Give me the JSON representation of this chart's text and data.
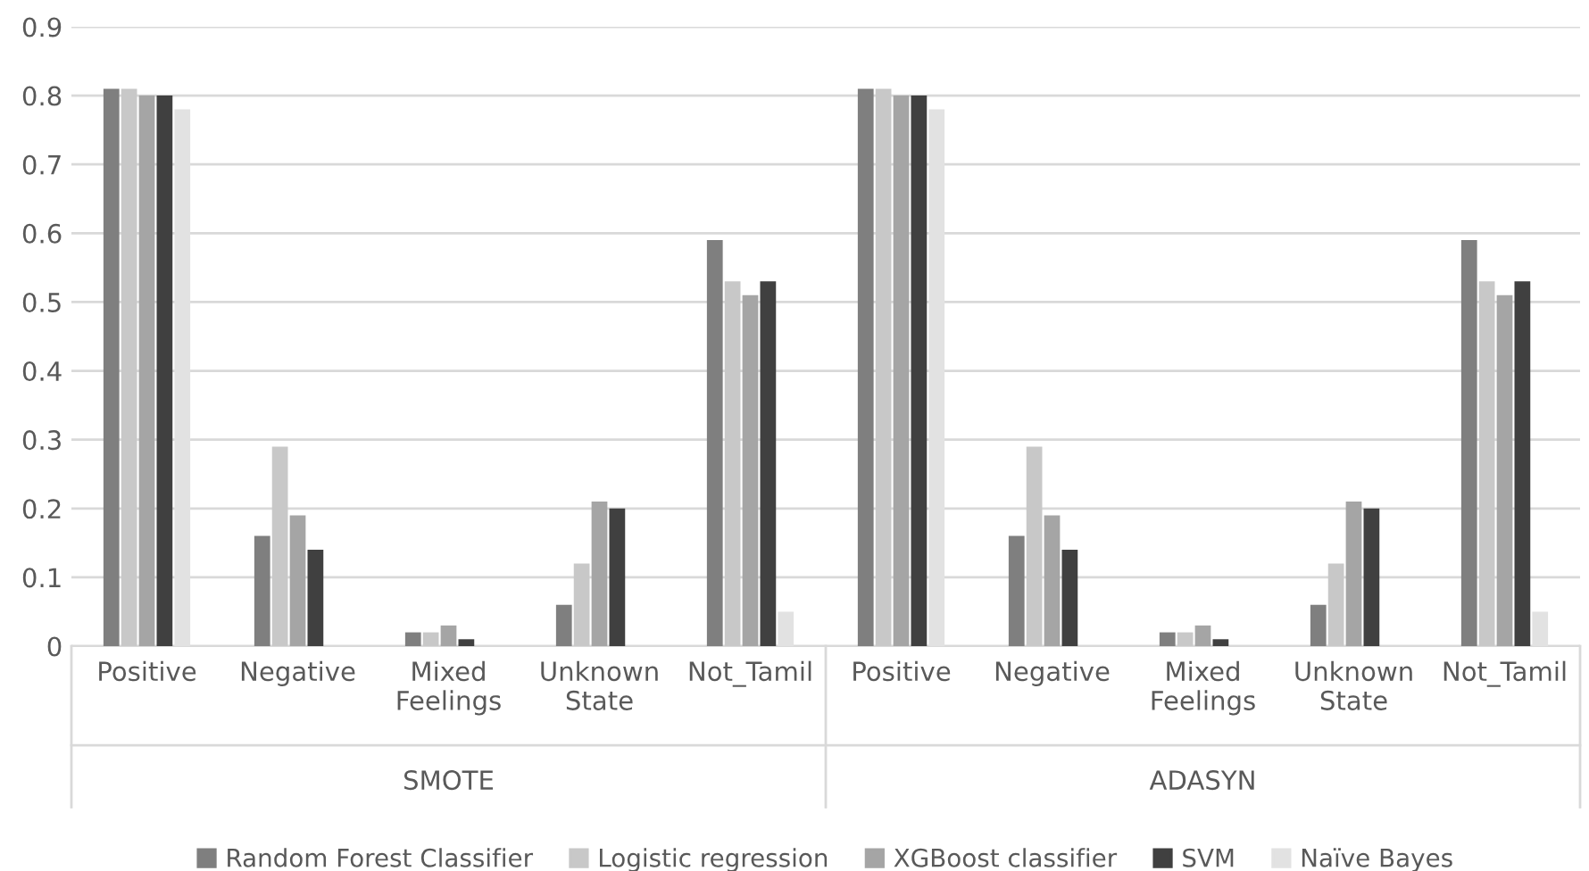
{
  "chart_data": {
    "type": "bar",
    "categories": [
      "Positive",
      "Negative",
      "Mixed\nFeelings",
      "Unknown\nState",
      "Not_Tamil",
      "Positive",
      "Negative",
      "Mixed\nFeelings",
      "Unknown\nState",
      "Not_Tamil"
    ],
    "series": [
      {
        "name": "Random Forest Classifier",
        "color": "#7f7f7f",
        "values": [
          0.81,
          0.16,
          0.02,
          0.06,
          0.59,
          0.81,
          0.16,
          0.02,
          0.06,
          0.59
        ]
      },
      {
        "name": "Logistic regression",
        "color": "#c8c8c8",
        "values": [
          0.81,
          0.29,
          0.02,
          0.12,
          0.53,
          0.81,
          0.29,
          0.02,
          0.12,
          0.53
        ]
      },
      {
        "name": "XGBoost classifier",
        "color": "#a5a5a5",
        "values": [
          0.8,
          0.19,
          0.03,
          0.21,
          0.51,
          0.8,
          0.19,
          0.03,
          0.21,
          0.51
        ]
      },
      {
        "name": "SVM",
        "color": "#404040",
        "values": [
          0.8,
          0.14,
          0.01,
          0.2,
          0.53,
          0.8,
          0.14,
          0.01,
          0.2,
          0.53
        ]
      },
      {
        "name": "Naïve Bayes",
        "color": "#e2e2e2",
        "values": [
          0.78,
          0,
          0,
          0,
          0.05,
          0.78,
          0,
          0,
          0,
          0.05
        ]
      }
    ],
    "annotations": [
      "SMOTE",
      "ADASYN"
    ],
    "ylim": [
      0,
      0.9
    ],
    "yticks": [
      0,
      0.1,
      0.2,
      0.3,
      0.4,
      0.5,
      0.6,
      0.7,
      0.8,
      0.9
    ],
    "grid": "y",
    "legend": "bottom"
  }
}
